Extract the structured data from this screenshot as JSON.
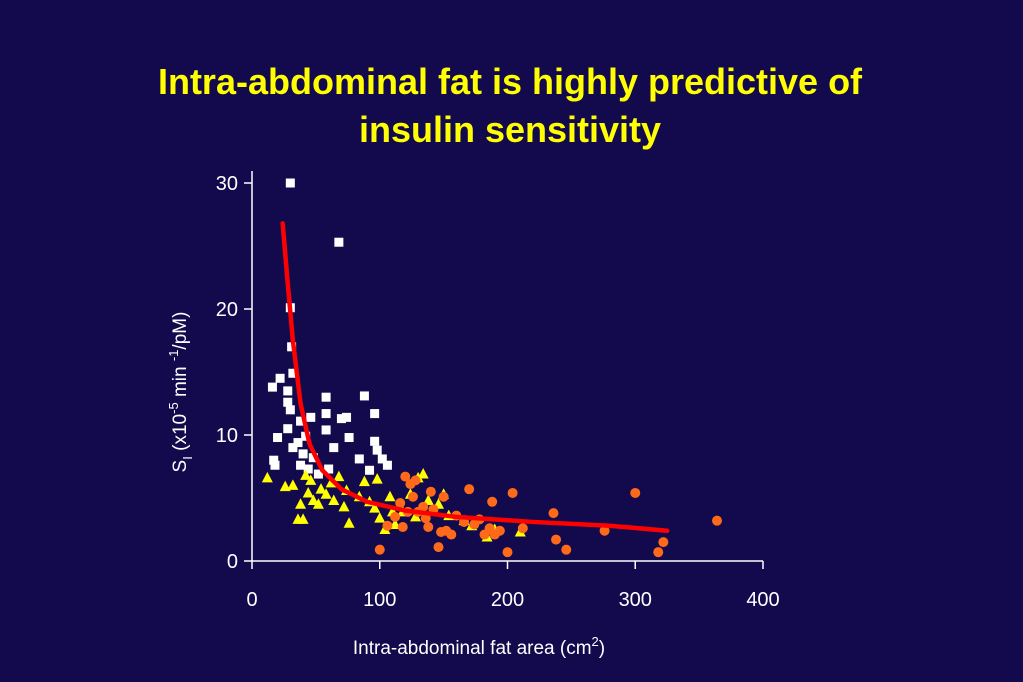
{
  "slide": {
    "title_line1": "Intra-abdominal fat is highly predictive of",
    "title_line2": "insulin sensitivity",
    "background": "#120a4d"
  },
  "chart_data": {
    "type": "scatter",
    "title": "Intra-abdominal fat is highly predictive of insulin sensitivity",
    "xlabel": {
      "base": "Intra-abdominal fat area (cm",
      "sup": "2",
      "after": ")"
    },
    "ylabel": {
      "s": "S",
      "sub": "I",
      "part1": " (x10",
      "sup1": "-5",
      "part2": " min ",
      "sup2": "-1",
      "part3": "/pM)"
    },
    "xlim": [
      0,
      400
    ],
    "ylim": [
      0,
      30
    ],
    "xticks": [
      0,
      100,
      200,
      300,
      400
    ],
    "yticks": [
      0,
      10,
      20,
      30
    ],
    "grid": false,
    "legend": "none",
    "series": [
      {
        "marker": "square",
        "color": "#ffffff",
        "points": [
          [
            30,
            30
          ],
          [
            68,
            25.3
          ],
          [
            30,
            20.1
          ],
          [
            31,
            17
          ],
          [
            32,
            14.9
          ],
          [
            16,
            13.8
          ],
          [
            22,
            14.5
          ],
          [
            28,
            13.5
          ],
          [
            28,
            12.6
          ],
          [
            30,
            12
          ],
          [
            58,
            13
          ],
          [
            88,
            13.1
          ],
          [
            70,
            11.3
          ],
          [
            74,
            11.4
          ],
          [
            58,
            11.7
          ],
          [
            96,
            11.7
          ],
          [
            46,
            11.4
          ],
          [
            38,
            11.1
          ],
          [
            20,
            9.8
          ],
          [
            28,
            10.5
          ],
          [
            42,
            9.9
          ],
          [
            36,
            9.4
          ],
          [
            58,
            10.4
          ],
          [
            76,
            9.8
          ],
          [
            96,
            9.5
          ],
          [
            64,
            9
          ],
          [
            32,
            9
          ],
          [
            17,
            8
          ],
          [
            18,
            7.6
          ],
          [
            48,
            8.2
          ],
          [
            84,
            8.1
          ],
          [
            102,
            8.1
          ],
          [
            106,
            7.6
          ],
          [
            92,
            7.2
          ],
          [
            44,
            7.3
          ],
          [
            52,
            6.9
          ],
          [
            38,
            7.6
          ],
          [
            98,
            8.8
          ],
          [
            40,
            8.5
          ],
          [
            60,
            7.3
          ]
        ]
      },
      {
        "marker": "triangle",
        "color": "#ffff00",
        "points": [
          [
            12,
            6.6
          ],
          [
            26,
            5.9
          ],
          [
            32,
            6
          ],
          [
            38,
            4.5
          ],
          [
            44,
            5.4
          ],
          [
            48,
            4.8
          ],
          [
            52,
            4.5
          ],
          [
            36,
            3.3
          ],
          [
            40,
            3.3
          ],
          [
            46,
            6.4
          ],
          [
            54,
            5.7
          ],
          [
            64,
            4.8
          ],
          [
            72,
            4.3
          ],
          [
            76,
            3
          ],
          [
            84,
            5.1
          ],
          [
            88,
            6.3
          ],
          [
            92,
            4.7
          ],
          [
            96,
            4.2
          ],
          [
            100,
            3.4
          ],
          [
            104,
            2.5
          ],
          [
            112,
            2.9
          ],
          [
            118,
            3.9
          ],
          [
            124,
            5.3
          ],
          [
            130,
            6.6
          ],
          [
            134,
            6.9
          ],
          [
            138,
            4.8
          ],
          [
            146,
            4.5
          ],
          [
            150,
            5.3
          ],
          [
            154,
            3.6
          ],
          [
            166,
            3.2
          ],
          [
            172,
            2.8
          ],
          [
            184,
            1.9
          ],
          [
            190,
            2.5
          ],
          [
            210,
            2.3
          ],
          [
            58,
            5.3
          ],
          [
            68,
            6.7
          ],
          [
            74,
            5.6
          ],
          [
            108,
            5.1
          ],
          [
            128,
            3.5
          ],
          [
            62,
            6.2
          ],
          [
            98,
            6.5
          ],
          [
            110,
            3.9
          ],
          [
            42,
            6.8
          ]
        ]
      },
      {
        "marker": "circle",
        "color": "#ff6a1a",
        "points": [
          [
            100,
            0.9
          ],
          [
            106,
            2.8
          ],
          [
            112,
            3.5
          ],
          [
            116,
            4.6
          ],
          [
            120,
            6.7
          ],
          [
            124,
            6.1
          ],
          [
            126,
            5.1
          ],
          [
            128,
            6.4
          ],
          [
            130,
            3.9
          ],
          [
            134,
            4.3
          ],
          [
            136,
            3.4
          ],
          [
            138,
            2.7
          ],
          [
            140,
            5.5
          ],
          [
            142,
            4.1
          ],
          [
            146,
            1.1
          ],
          [
            148,
            2.3
          ],
          [
            150,
            5.1
          ],
          [
            152,
            2.4
          ],
          [
            156,
            2.1
          ],
          [
            160,
            3.6
          ],
          [
            166,
            3.1
          ],
          [
            170,
            5.7
          ],
          [
            174,
            2.9
          ],
          [
            178,
            3.3
          ],
          [
            182,
            2.1
          ],
          [
            186,
            2.6
          ],
          [
            188,
            4.7
          ],
          [
            190,
            2.1
          ],
          [
            194,
            2.4
          ],
          [
            200,
            0.7
          ],
          [
            204,
            5.4
          ],
          [
            212,
            2.6
          ],
          [
            236,
            3.8
          ],
          [
            238,
            1.7
          ],
          [
            246,
            0.9
          ],
          [
            276,
            2.4
          ],
          [
            300,
            5.4
          ],
          [
            318,
            0.7
          ],
          [
            322,
            1.5
          ],
          [
            364,
            3.2
          ],
          [
            118,
            2.7
          ],
          [
            122,
            3.9
          ]
        ]
      }
    ],
    "fit_line": {
      "color": "#ff0000",
      "description_points": [
        [
          24,
          26.8
        ],
        [
          28,
          22
        ],
        [
          32,
          17.5
        ],
        [
          38,
          12.5
        ],
        [
          45,
          9.3
        ],
        [
          55,
          7.2
        ],
        [
          70,
          5.7
        ],
        [
          90,
          4.7
        ],
        [
          120,
          4
        ],
        [
          160,
          3.5
        ],
        [
          220,
          3.1
        ],
        [
          280,
          2.8
        ],
        [
          325,
          2.4
        ]
      ]
    }
  }
}
